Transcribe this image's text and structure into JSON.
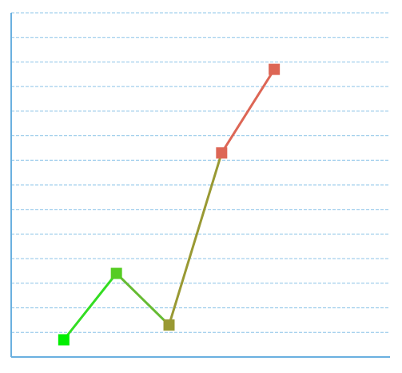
{
  "chart_data": {
    "type": "line",
    "title": "",
    "xlabel": "",
    "ylabel": "",
    "x": [
      1,
      2,
      3,
      4,
      5
    ],
    "series": [
      {
        "values": [
          0.7,
          3.4,
          1.3,
          8.3,
          11.7
        ]
      }
    ],
    "xlim": [
      0,
      7.2
    ],
    "ylim": [
      0,
      14
    ],
    "y_grid_step": 1,
    "grid": true,
    "segment_colors": [
      "#33dd22",
      "#66bb33",
      "#999933",
      "#dd6655"
    ],
    "point_colors": [
      "#00ee00",
      "#55cc22",
      "#999933",
      "#dd6655",
      "#dd6655"
    ],
    "axis_color": "#6ab0e0",
    "grid_color": "#8cc4e8"
  }
}
